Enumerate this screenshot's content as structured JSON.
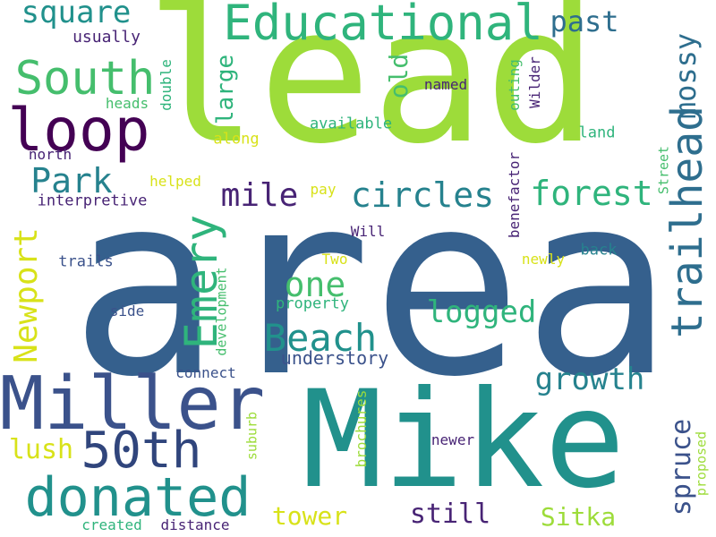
{
  "words": {
    "area": "area",
    "lead": "lead",
    "mike": "Mike",
    "miller": "Miller",
    "educational": "Educational",
    "south": "South",
    "loop": "loop",
    "donated": "donated",
    "fiftieth": "50th",
    "emery": "Emery",
    "trailhead": "trailhead",
    "beach": "Beach",
    "newport": "Newport",
    "forest": "forest",
    "circles": "circles",
    "park": "Park",
    "mile": "mile",
    "square": "square",
    "past": "past",
    "mossy": "mossy",
    "large": "large",
    "old": "old",
    "one": "one",
    "logged": "logged",
    "growth": "growth",
    "spruce": "spruce",
    "sitka": "Sitka",
    "still": "still",
    "tower": "tower",
    "lush": "lush",
    "understory": "understory",
    "usually": "usually",
    "heads": "heads",
    "double": "double",
    "named": "named",
    "outing": "outing",
    "wilder": "Wilder",
    "available": "available",
    "along": "along",
    "land": "land",
    "north": "north",
    "benefactor": "benefactor",
    "street": "Street",
    "helped": "helped",
    "pay": "pay",
    "interpretive": "interpretive",
    "will": "Will",
    "back": "back",
    "newly": "newly",
    "trails": "trails",
    "two": "Two",
    "development": "development",
    "property": "property",
    "side": "side",
    "connect": "connect",
    "brochures": "brochures",
    "suburb": "suburb",
    "newer": "newer",
    "proposed": "proposed",
    "created": "created",
    "distance": "distance"
  },
  "colors": {
    "lime": "#9ddc3a",
    "blue": "#35608d",
    "teal": "#21918c",
    "deep_blue": "#3b528b",
    "green": "#2fb47c",
    "bright_green": "#45be6d",
    "purple": "#440154",
    "dark_purple": "#482475",
    "navy": "#30457c",
    "cyan_blue": "#2e6e8e",
    "yellow": "#d8e219",
    "sea_green": "#35b779",
    "mid_teal": "#26828e"
  }
}
